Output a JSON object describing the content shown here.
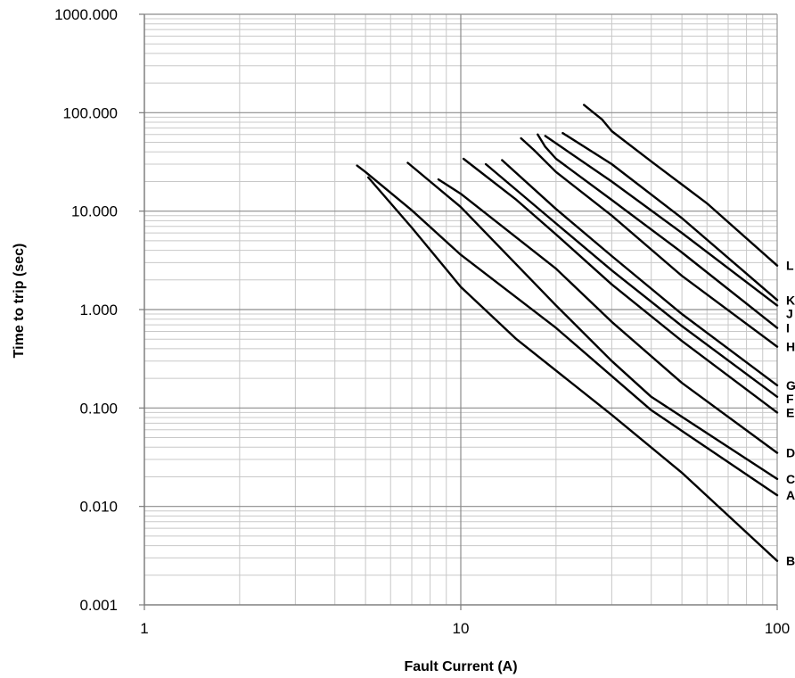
{
  "chart_data": {
    "type": "line",
    "title": "",
    "xlabel": "Fault Current (A)",
    "ylabel": "Time to trip (sec)",
    "xscale": "log",
    "yscale": "log",
    "xlim": [
      1,
      100
    ],
    "ylim": [
      0.001,
      1000
    ],
    "grid": true,
    "legend": "none; each curve is labeled at its right end",
    "line_color": "#000000",
    "grid_color": "#c8c8c8",
    "x_ticks": [
      {
        "value": 1,
        "label": "1"
      },
      {
        "value": 10,
        "label": "10"
      },
      {
        "value": 100,
        "label": "100"
      }
    ],
    "y_ticks": [
      {
        "value": 0.001,
        "label": "0.001"
      },
      {
        "value": 0.01,
        "label": "0.010"
      },
      {
        "value": 0.1,
        "label": "0.100"
      },
      {
        "value": 1,
        "label": "1.000"
      },
      {
        "value": 10,
        "label": "10.000"
      },
      {
        "value": 100,
        "label": "100.000"
      },
      {
        "value": 1000,
        "label": "1000.000"
      }
    ],
    "series": [
      {
        "name": "L",
        "points": [
          [
            24.5,
            120
          ],
          [
            28,
            85
          ],
          [
            30,
            65
          ],
          [
            40,
            32
          ],
          [
            60,
            12
          ],
          [
            100,
            2.8
          ]
        ]
      },
      {
        "name": "K",
        "points": [
          [
            21,
            62
          ],
          [
            30,
            30
          ],
          [
            50,
            8.5
          ],
          [
            100,
            1.25
          ]
        ]
      },
      {
        "name": "J",
        "points": [
          [
            18.5,
            58
          ],
          [
            30,
            20
          ],
          [
            50,
            6
          ],
          [
            100,
            1.1
          ]
        ]
      },
      {
        "name": "I",
        "points": [
          [
            17.5,
            60
          ],
          [
            18.5,
            45
          ],
          [
            20,
            34
          ],
          [
            30,
            13
          ],
          [
            50,
            3.8
          ],
          [
            100,
            0.65
          ]
        ]
      },
      {
        "name": "H",
        "points": [
          [
            15.5,
            55
          ],
          [
            17,
            42
          ],
          [
            20,
            25
          ],
          [
            30,
            9
          ],
          [
            50,
            2.2
          ],
          [
            100,
            0.42
          ]
        ]
      },
      {
        "name": "G",
        "points": [
          [
            13.5,
            33
          ],
          [
            20,
            10.5
          ],
          [
            30,
            3.5
          ],
          [
            50,
            0.9
          ],
          [
            100,
            0.17
          ]
        ]
      },
      {
        "name": "F",
        "points": [
          [
            12,
            30
          ],
          [
            20,
            7.5
          ],
          [
            30,
            2.5
          ],
          [
            50,
            0.68
          ],
          [
            100,
            0.13
          ]
        ]
      },
      {
        "name": "E",
        "points": [
          [
            10.2,
            34
          ],
          [
            15,
            13
          ],
          [
            20,
            5.8
          ],
          [
            30,
            1.8
          ],
          [
            50,
            0.48
          ],
          [
            100,
            0.09
          ]
        ]
      },
      {
        "name": "D",
        "points": [
          [
            8.5,
            21
          ],
          [
            10,
            15
          ],
          [
            20,
            2.6
          ],
          [
            30,
            0.75
          ],
          [
            50,
            0.18
          ],
          [
            100,
            0.035
          ]
        ]
      },
      {
        "name": "C",
        "points": [
          [
            6.8,
            31
          ],
          [
            10,
            11
          ],
          [
            20,
            1.1
          ],
          [
            30,
            0.3
          ],
          [
            40,
            0.13
          ],
          [
            100,
            0.019
          ]
        ]
      },
      {
        "name": "A",
        "points": [
          [
            4.7,
            29
          ],
          [
            5,
            25
          ],
          [
            7,
            10.2
          ],
          [
            10,
            3.6
          ],
          [
            20,
            0.65
          ],
          [
            40,
            0.095
          ],
          [
            100,
            0.013
          ]
        ]
      },
      {
        "name": "B",
        "points": [
          [
            5.1,
            22
          ],
          [
            7,
            6.8
          ],
          [
            10,
            1.7
          ],
          [
            15,
            0.5
          ],
          [
            30,
            0.085
          ],
          [
            50,
            0.022
          ],
          [
            100,
            0.0028
          ]
        ]
      }
    ]
  }
}
